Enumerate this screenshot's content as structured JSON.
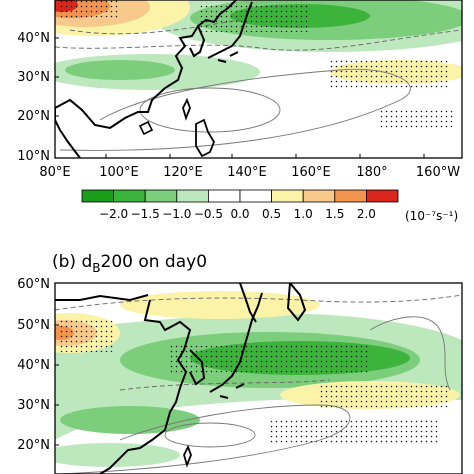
{
  "panel_a": {
    "lat_labels": [
      "40°N",
      "30°N",
      "20°N",
      "10°N"
    ],
    "lon_labels": [
      "80°E",
      "100°E",
      "120°E",
      "140°E",
      "160°E",
      "180°",
      "160°W"
    ]
  },
  "colorbar": {
    "ticks": [
      "−2.0",
      "−1.5",
      "−1.0",
      "−0.5",
      "0.0",
      "0.5",
      "1.0",
      "1.5",
      "2.0"
    ],
    "units": "(10⁻⁷s⁻¹)",
    "colors": [
      "#1a9e1a",
      "#3cb43c",
      "#7cce7c",
      "#bde8bd",
      "#ffffff",
      "#ffffff",
      "#fbf3a8",
      "#f7c98a",
      "#f0944e",
      "#d9261c"
    ]
  },
  "panel_b": {
    "title_prefix": "(b) d",
    "title_sub": "B",
    "title_suffix": "200 on day0",
    "lat_labels": [
      "60°N",
      "50°N",
      "40°N",
      "30°N",
      "20°N"
    ]
  }
}
